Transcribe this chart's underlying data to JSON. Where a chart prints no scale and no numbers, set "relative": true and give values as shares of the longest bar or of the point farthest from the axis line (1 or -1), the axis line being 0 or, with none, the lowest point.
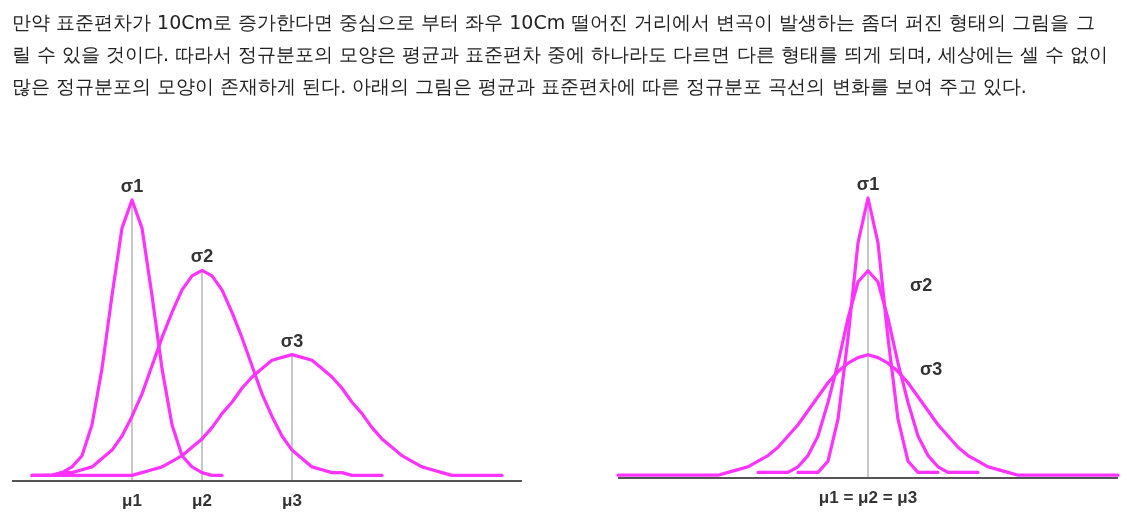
{
  "chart_data": [
    {
      "type": "line",
      "relative": true,
      "annotations": [
        "만약 표준편차가 10Cm로 증가한다면 중심으로 부터 좌우 10Cm 떨어진 거리에서 변곡이 발생하는 좀더 퍼진 형태의 그림을 그릴 수 있을 것이다. 따라서 정규분포의 모양은 평균과 표준편차 중에 하나라도 다르면 다른 형태를 띄게 되며, 세상에는 셀 수 없이 많은 정규분포의 모양이 존재하게 된다. 아래의 그림은 평균과 표준편차에 따른 정규분포 곡선의 변화를 보여 주고 있다."
      ],
      "categories": [
        null,
        null,
        null,
        null,
        null,
        null,
        null,
        null,
        null,
        null,
        null,
        null,
        "μ1",
        null,
        null,
        null,
        null,
        null,
        null,
        "μ2",
        null,
        null,
        null,
        null,
        null,
        null,
        null,
        null,
        "μ3",
        null,
        null,
        null,
        null,
        null,
        null,
        null,
        null,
        null,
        null,
        null,
        null,
        null,
        null,
        null,
        null,
        null,
        null,
        null,
        null,
        null,
        null,
        null
      ],
      "ref_lines": [
        {
          "axis": "x",
          "value": "μ1",
          "color": "#c8c8c8"
        },
        {
          "axis": "x",
          "value": "μ2",
          "color": "#c8c8c8"
        },
        {
          "axis": "x",
          "value": "μ3",
          "color": "#c8c8c8"
        }
      ],
      "series": [
        {
          "name": "σ1",
          "color": "#ff33ff",
          "values": [
            null,
            null,
            0.02,
            0.02,
            0.02,
            0.03,
            0.05,
            0.09,
            0.2,
            0.4,
            0.66,
            0.9,
            1,
            0.9,
            0.66,
            0.4,
            0.2,
            0.09,
            0.05,
            0.03,
            0.02,
            0.02,
            null,
            null,
            null,
            null,
            null,
            null,
            null,
            null,
            null,
            null,
            null,
            null,
            null,
            null,
            null,
            null,
            null,
            null,
            null,
            null,
            null,
            null,
            null,
            null,
            null,
            null,
            null,
            null,
            null,
            null
          ]
        },
        {
          "name": "σ2",
          "color": "#ff33ff",
          "values": [
            null,
            null,
            null,
            0.02,
            0.02,
            0.03,
            0.03,
            0.04,
            0.05,
            0.08,
            0.11,
            0.16,
            0.23,
            0.31,
            0.41,
            0.51,
            0.6,
            0.68,
            0.73,
            0.75,
            0.73,
            0.68,
            0.6,
            0.51,
            0.41,
            0.31,
            0.23,
            0.16,
            0.11,
            0.08,
            0.05,
            0.04,
            0.03,
            0.03,
            0.02,
            0.02,
            0.02,
            0.02,
            null,
            null,
            null,
            null,
            null,
            null,
            null,
            null,
            null,
            null,
            null,
            null,
            null,
            null
          ]
        },
        {
          "name": "σ3",
          "color": "#ff33ff",
          "values": [
            null,
            null,
            0.02,
            0.02,
            0.02,
            0.02,
            0.02,
            0.02,
            0.02,
            0.02,
            0.02,
            0.02,
            0.02,
            0.03,
            0.04,
            0.05,
            0.07,
            0.09,
            0.12,
            0.15,
            0.19,
            0.24,
            0.28,
            0.33,
            0.37,
            0.4,
            0.43,
            0.44,
            0.45,
            0.44,
            0.43,
            0.4,
            0.37,
            0.33,
            0.28,
            0.24,
            0.19,
            0.15,
            0.12,
            0.09,
            0.07,
            0.05,
            0.04,
            0.03,
            0.02,
            0.02,
            0.02,
            0.02,
            0.02,
            0.02,
            null,
            null
          ]
        }
      ]
    },
    {
      "type": "line",
      "relative": true,
      "xlabel": "μ1 = μ2 = μ3",
      "categories": [
        null,
        null,
        null,
        null,
        null,
        null,
        null,
        null,
        null,
        null,
        null,
        null,
        null,
        null,
        null,
        null,
        null,
        null,
        null,
        null,
        null,
        null,
        null,
        null,
        null,
        null,
        null,
        null,
        null,
        null,
        null,
        null,
        null,
        null,
        null,
        null,
        null,
        null,
        null,
        null,
        null,
        null,
        null,
        null,
        null,
        null,
        null,
        null,
        null,
        null,
        null
      ],
      "series": [
        {
          "name": "σ1",
          "color": "#ff33ff",
          "values": [
            null,
            null,
            null,
            null,
            null,
            null,
            null,
            null,
            null,
            null,
            null,
            null,
            null,
            null,
            null,
            null,
            null,
            null,
            0.02,
            0.02,
            0.02,
            0.06,
            0.21,
            0.5,
            0.84,
            1,
            0.84,
            0.5,
            0.21,
            0.06,
            0.02,
            0.02,
            0.02,
            null,
            null,
            null,
            null,
            null,
            null,
            null,
            null,
            null,
            null,
            null,
            null,
            null,
            null,
            null,
            null,
            null,
            null
          ]
        },
        {
          "name": "σ2",
          "color": "#ff33ff",
          "values": [
            null,
            null,
            null,
            null,
            null,
            null,
            null,
            null,
            null,
            null,
            null,
            null,
            null,
            null,
            0.02,
            0.02,
            0.02,
            0.02,
            0.04,
            0.08,
            0.15,
            0.27,
            0.41,
            0.57,
            0.7,
            0.74,
            0.7,
            0.57,
            0.41,
            0.27,
            0.15,
            0.08,
            0.04,
            0.02,
            0.02,
            0.02,
            0.02,
            null,
            null,
            null,
            null,
            null,
            null,
            null,
            null,
            null,
            null,
            null,
            null,
            null,
            null
          ]
        },
        {
          "name": "σ3",
          "color": "#ff33ff",
          "values": [
            0.01,
            0.01,
            0.01,
            0.01,
            0.01,
            0.01,
            0.01,
            0.01,
            0.01,
            0.01,
            0.01,
            0.02,
            0.03,
            0.04,
            0.06,
            0.08,
            0.11,
            0.15,
            0.19,
            0.24,
            0.29,
            0.34,
            0.38,
            0.41,
            0.43,
            0.44,
            0.43,
            0.41,
            0.38,
            0.34,
            0.29,
            0.24,
            0.19,
            0.15,
            0.11,
            0.08,
            0.06,
            0.04,
            0.03,
            0.02,
            0.01,
            0.01,
            0.01,
            0.01,
            0.01,
            0.01,
            0.01,
            0.01,
            0.01,
            0.01,
            0.01
          ]
        }
      ]
    }
  ]
}
